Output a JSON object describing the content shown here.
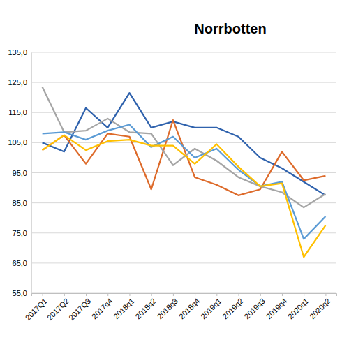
{
  "chart_data": {
    "type": "line",
    "title": "Norrbotten",
    "categories": [
      "2017Q1",
      "2017Q2",
      "2017Q3",
      "2017q4",
      "2018q1",
      "2018q2",
      "2018q3",
      "2018q4",
      "2019q1",
      "2019q2",
      "2019q3",
      "2019q4",
      "2020q1",
      "2020q2"
    ],
    "series": [
      {
        "color": "#2f62ad",
        "values": [
          105,
          102,
          116.5,
          110,
          121.5,
          110,
          112,
          110,
          110,
          107,
          100,
          96.5,
          92,
          87.5
        ]
      },
      {
        "color": "#dd6a2a",
        "values": [
          102.5,
          107.5,
          98,
          108,
          107,
          89.5,
          112.5,
          93.5,
          91,
          87.5,
          89.5,
          102,
          92.5,
          94
        ]
      },
      {
        "color": "#a5a5a5",
        "values": [
          123.5,
          108.5,
          109,
          113,
          108.5,
          108,
          97.5,
          103,
          99,
          93.5,
          90.5,
          88.5,
          83.5,
          88
        ]
      },
      {
        "color": "#5b9bd5",
        "values": [
          108,
          108.5,
          106,
          109,
          111,
          103.5,
          107,
          100,
          103,
          96,
          90.5,
          92,
          73,
          80.5
        ]
      },
      {
        "color": "#ffc000",
        "values": [
          102.5,
          107.5,
          102.5,
          105.5,
          106,
          104,
          104,
          98,
          104.5,
          97,
          90.5,
          91.5,
          67,
          77.5
        ]
      }
    ],
    "ylim": [
      55,
      135
    ],
    "yticks": [
      {
        "value": 55,
        "label": "55,0"
      },
      {
        "value": 65,
        "label": "65,0"
      },
      {
        "value": 75,
        "label": "75,0"
      },
      {
        "value": 85,
        "label": "85,0"
      },
      {
        "value": 95,
        "label": "95,0"
      },
      {
        "value": 105,
        "label": "105,0"
      },
      {
        "value": 115,
        "label": "115,0"
      },
      {
        "value": 125,
        "label": "125,0"
      },
      {
        "value": 135,
        "label": "135,0"
      }
    ],
    "grid": true
  }
}
